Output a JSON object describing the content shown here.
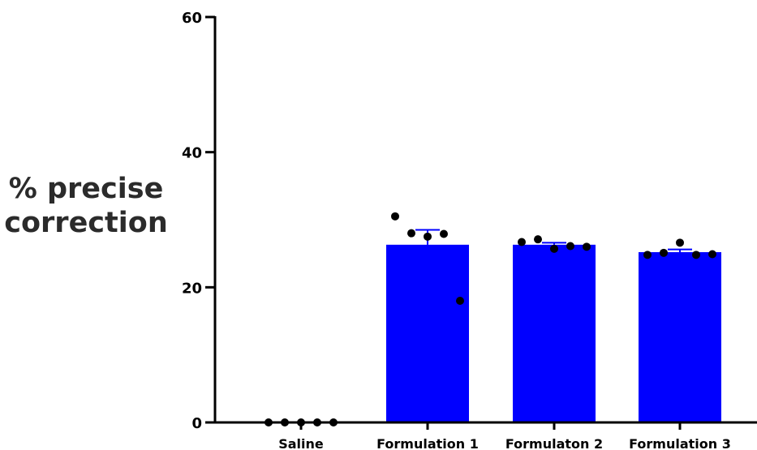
{
  "chart_data": {
    "type": "bar",
    "ylabel_lines": [
      "% precise",
      "correction"
    ],
    "xlabel": "",
    "ylim": [
      0,
      60
    ],
    "yticks": [
      "0",
      "20",
      "40",
      "60"
    ],
    "grid": false,
    "bar_color": "#0000ff",
    "point_color": "#000000",
    "categories": [
      "Saline",
      "Formulation 1",
      "Formulaton 2",
      "Formulation 3"
    ],
    "values": [
      0,
      26.3,
      26.3,
      25.2
    ],
    "errors": [
      0,
      2.2,
      0.3,
      0.4
    ],
    "points": [
      [
        0,
        0,
        0,
        0,
        0
      ],
      [
        30.5,
        28.0,
        27.5,
        27.9,
        18.0
      ],
      [
        26.7,
        27.1,
        25.7,
        26.1,
        26.0
      ],
      [
        24.8,
        25.1,
        26.6,
        24.8,
        24.9
      ]
    ]
  }
}
